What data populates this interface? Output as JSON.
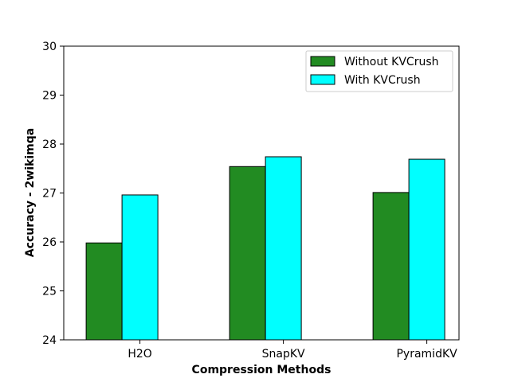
{
  "chart_data": {
    "type": "bar",
    "title": "",
    "xlabel": "Compression Methods",
    "ylabel": "Accuracy - 2wikimqa",
    "categories": [
      "H2O",
      "SnapKV",
      "PyramidKV"
    ],
    "ylim": [
      24,
      30
    ],
    "yticks": [
      24,
      25,
      26,
      27,
      28,
      29,
      30
    ],
    "grid": false,
    "legend_position": "top-right",
    "series": [
      {
        "name": "Without KVCrush",
        "color": "#228b22",
        "values": [
          25.98,
          27.54,
          27.01
        ]
      },
      {
        "name": "With KVCrush",
        "color": "#00ffff",
        "values": [
          26.96,
          27.74,
          27.69
        ]
      }
    ]
  }
}
